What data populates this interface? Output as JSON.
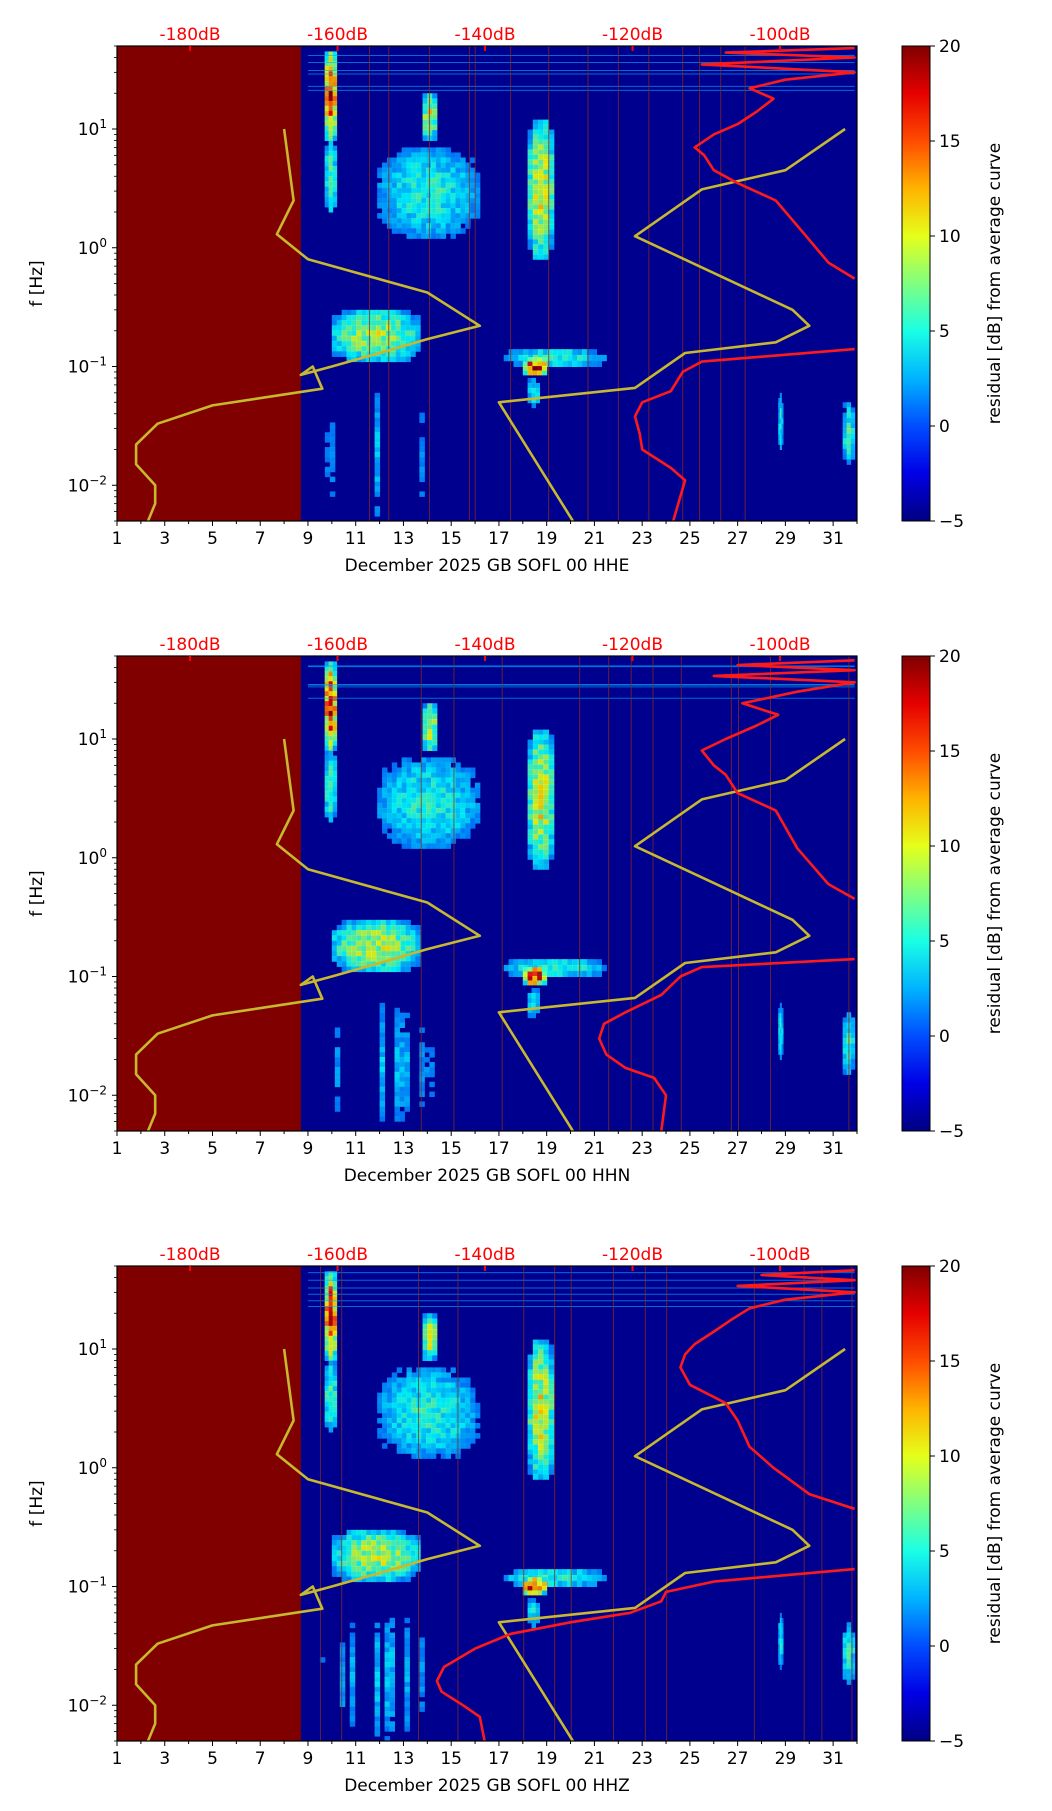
{
  "chart_data": [
    {
      "type": "heatmap",
      "title": "",
      "xlabel": "December 2025 GB SOFL 00 HHE",
      "ylabel": "f [Hz]",
      "x_ticks": [
        "1",
        "3",
        "5",
        "7",
        "9",
        "11",
        "13",
        "15",
        "17",
        "19",
        "21",
        "23",
        "25",
        "27",
        "29",
        "31"
      ],
      "y_ticks": [
        {
          "exp": "1",
          "value": 10
        },
        {
          "exp": "0",
          "value": 1
        },
        {
          "exp": "−1",
          "value": 0.1
        },
        {
          "exp": "−2",
          "value": 0.01
        }
      ],
      "top_ticks": [
        "-180dB",
        "-160dB",
        "-140dB",
        "-120dB",
        "-100dB"
      ],
      "colorbar": {
        "label": "residual [dB] from average curve",
        "min": -5,
        "max": 20,
        "ticks": [
          "20",
          "15",
          "10",
          "5",
          "0",
          "−5"
        ]
      },
      "xlim": [
        1,
        32
      ],
      "ylim": [
        0.005,
        50
      ],
      "missing_data_until_day": 8.7,
      "colors": {
        "missing": "#800000",
        "background": "#00008f",
        "red_line": "#ff1a1a",
        "yellow_line": "#c8b82e",
        "grid_line": "#8b2b1b"
      },
      "series": [
        {
          "color": "yellow",
          "points": [
            [
              8.0,
              10
            ],
            [
              8.4,
              2.5
            ],
            [
              7.7,
              1.3
            ],
            [
              9.0,
              0.8
            ],
            [
              14.0,
              0.42
            ],
            [
              16.2,
              0.22
            ],
            [
              14.0,
              0.17
            ],
            [
              12.0,
              0.13
            ],
            [
              10.0,
              0.1
            ],
            [
              8.7,
              0.085
            ],
            [
              9.2,
              0.1
            ],
            [
              9.6,
              0.065
            ],
            [
              5.0,
              0.047
            ],
            [
              2.7,
              0.033
            ],
            [
              1.8,
              0.022
            ],
            [
              1.8,
              0.015
            ],
            [
              2.6,
              0.01
            ],
            [
              2.6,
              0.007
            ],
            [
              2.3,
              0.005
            ]
          ]
        },
        {
          "color": "yellow",
          "points": [
            [
              20.1,
              0.005
            ],
            [
              17.0,
              0.05
            ],
            [
              22.7,
              0.066
            ],
            [
              24.8,
              0.13
            ],
            [
              28.6,
              0.16
            ],
            [
              30.0,
              0.22
            ],
            [
              29.3,
              0.3
            ],
            [
              22.7,
              1.25
            ],
            [
              25.5,
              3.1
            ],
            [
              29.0,
              4.5
            ],
            [
              31.5,
              10
            ]
          ]
        },
        {
          "color": "red",
          "points": [
            [
              24.3,
              0.005
            ],
            [
              24.8,
              0.011
            ],
            [
              24.2,
              0.014
            ],
            [
              23.0,
              0.02
            ],
            [
              22.9,
              0.027
            ],
            [
              22.7,
              0.038
            ],
            [
              23.0,
              0.05
            ],
            [
              24.2,
              0.062
            ],
            [
              24.7,
              0.09
            ],
            [
              25.5,
              0.11
            ],
            [
              31.9,
              0.14
            ]
          ]
        },
        {
          "color": "red",
          "points": [
            [
              31.9,
              0.55
            ],
            [
              30.8,
              0.75
            ],
            [
              29.8,
              1.3
            ],
            [
              28.6,
              2.5
            ],
            [
              27.0,
              3.5
            ],
            [
              26.0,
              4.5
            ],
            [
              25.6,
              6.0
            ],
            [
              25.2,
              7.0
            ],
            [
              26.0,
              9.0
            ],
            [
              27.0,
              11.0
            ],
            [
              27.8,
              14.0
            ],
            [
              28.5,
              18.0
            ],
            [
              27.5,
              22.0
            ],
            [
              29.0,
              26.0
            ],
            [
              31.9,
              30.0
            ],
            [
              25.5,
              35.0
            ],
            [
              31.9,
              40.0
            ],
            [
              26.5,
              44.0
            ],
            [
              31.9,
              48.0
            ]
          ]
        }
      ]
    },
    {
      "type": "heatmap",
      "title": "",
      "xlabel": "December 2025 GB SOFL 00 HHN",
      "ylabel": "f [Hz]",
      "x_ticks": [
        "1",
        "3",
        "5",
        "7",
        "9",
        "11",
        "13",
        "15",
        "17",
        "19",
        "21",
        "23",
        "25",
        "27",
        "29",
        "31"
      ],
      "y_ticks": [
        {
          "exp": "1",
          "value": 10
        },
        {
          "exp": "0",
          "value": 1
        },
        {
          "exp": "−1",
          "value": 0.1
        },
        {
          "exp": "−2",
          "value": 0.01
        }
      ],
      "top_ticks": [
        "-180dB",
        "-160dB",
        "-140dB",
        "-120dB",
        "-100dB"
      ],
      "colorbar": {
        "label": "residual [dB] from average curve",
        "min": -5,
        "max": 20,
        "ticks": [
          "20",
          "15",
          "10",
          "5",
          "0",
          "−5"
        ]
      },
      "xlim": [
        1,
        32
      ],
      "ylim": [
        0.005,
        50
      ],
      "missing_data_until_day": 8.7,
      "colors": {
        "missing": "#800000",
        "background": "#00008f",
        "red_line": "#ff1a1a",
        "yellow_line": "#c8b82e",
        "grid_line": "#8b2b1b"
      },
      "series": [
        {
          "color": "yellow",
          "points": [
            [
              8.0,
              10
            ],
            [
              8.4,
              2.5
            ],
            [
              7.7,
              1.3
            ],
            [
              9.0,
              0.8
            ],
            [
              14.0,
              0.42
            ],
            [
              16.2,
              0.22
            ],
            [
              14.0,
              0.17
            ],
            [
              12.0,
              0.13
            ],
            [
              10.0,
              0.1
            ],
            [
              8.7,
              0.085
            ],
            [
              9.2,
              0.1
            ],
            [
              9.6,
              0.065
            ],
            [
              5.0,
              0.047
            ],
            [
              2.7,
              0.033
            ],
            [
              1.8,
              0.022
            ],
            [
              1.8,
              0.015
            ],
            [
              2.6,
              0.01
            ],
            [
              2.6,
              0.007
            ],
            [
              2.3,
              0.005
            ]
          ]
        },
        {
          "color": "yellow",
          "points": [
            [
              20.1,
              0.005
            ],
            [
              17.0,
              0.05
            ],
            [
              22.7,
              0.066
            ],
            [
              24.8,
              0.13
            ],
            [
              28.6,
              0.16
            ],
            [
              30.0,
              0.22
            ],
            [
              29.3,
              0.3
            ],
            [
              22.7,
              1.25
            ],
            [
              25.5,
              3.1
            ],
            [
              29.0,
              4.5
            ],
            [
              31.5,
              10
            ]
          ]
        },
        {
          "color": "red",
          "points": [
            [
              23.8,
              0.005
            ],
            [
              24.0,
              0.01
            ],
            [
              23.5,
              0.014
            ],
            [
              22.3,
              0.017
            ],
            [
              21.5,
              0.022
            ],
            [
              21.2,
              0.03
            ],
            [
              21.4,
              0.04
            ],
            [
              22.3,
              0.05
            ],
            [
              23.8,
              0.07
            ],
            [
              24.6,
              0.1
            ],
            [
              25.5,
              0.12
            ],
            [
              31.9,
              0.14
            ]
          ]
        },
        {
          "color": "red",
          "points": [
            [
              31.9,
              0.45
            ],
            [
              30.8,
              0.6
            ],
            [
              29.5,
              1.2
            ],
            [
              28.6,
              2.5
            ],
            [
              27.0,
              3.5
            ],
            [
              26.5,
              5.0
            ],
            [
              26.0,
              6.0
            ],
            [
              25.5,
              8.0
            ],
            [
              26.5,
              10.0
            ],
            [
              27.8,
              13.0
            ],
            [
              28.7,
              16.0
            ],
            [
              27.2,
              20.0
            ],
            [
              29.5,
              25.0
            ],
            [
              31.9,
              30.0
            ],
            [
              26.0,
              34.0
            ],
            [
              31.9,
              38.0
            ],
            [
              27.0,
              42.0
            ],
            [
              31.9,
              46.0
            ]
          ]
        }
      ]
    },
    {
      "type": "heatmap",
      "title": "",
      "xlabel": "December 2025 GB SOFL 00 HHZ",
      "ylabel": "f [Hz]",
      "x_ticks": [
        "1",
        "3",
        "5",
        "7",
        "9",
        "11",
        "13",
        "15",
        "17",
        "19",
        "21",
        "23",
        "25",
        "27",
        "29",
        "31"
      ],
      "y_ticks": [
        {
          "exp": "1",
          "value": 10
        },
        {
          "exp": "0",
          "value": 1
        },
        {
          "exp": "−1",
          "value": 0.1
        },
        {
          "exp": "−2",
          "value": 0.01
        }
      ],
      "top_ticks": [
        "-180dB",
        "-160dB",
        "-140dB",
        "-120dB",
        "-100dB"
      ],
      "colorbar": {
        "label": "residual [dB] from average curve",
        "min": -5,
        "max": 20,
        "ticks": [
          "20",
          "15",
          "10",
          "5",
          "0",
          "−5"
        ]
      },
      "xlim": [
        1,
        32
      ],
      "ylim": [
        0.005,
        50
      ],
      "missing_data_until_day": 8.7,
      "colors": {
        "missing": "#800000",
        "background": "#00008f",
        "red_line": "#ff1a1a",
        "yellow_line": "#c8b82e",
        "grid_line": "#8b2b1b"
      },
      "series": [
        {
          "color": "yellow",
          "points": [
            [
              8.0,
              10
            ],
            [
              8.4,
              2.5
            ],
            [
              7.7,
              1.3
            ],
            [
              9.0,
              0.8
            ],
            [
              14.0,
              0.42
            ],
            [
              16.2,
              0.22
            ],
            [
              14.0,
              0.17
            ],
            [
              12.0,
              0.13
            ],
            [
              10.0,
              0.1
            ],
            [
              8.7,
              0.085
            ],
            [
              9.2,
              0.1
            ],
            [
              9.6,
              0.065
            ],
            [
              5.0,
              0.047
            ],
            [
              2.7,
              0.033
            ],
            [
              1.8,
              0.022
            ],
            [
              1.8,
              0.015
            ],
            [
              2.6,
              0.01
            ],
            [
              2.6,
              0.007
            ],
            [
              2.3,
              0.005
            ]
          ]
        },
        {
          "color": "yellow",
          "points": [
            [
              20.1,
              0.005
            ],
            [
              17.0,
              0.05
            ],
            [
              22.7,
              0.066
            ],
            [
              24.8,
              0.13
            ],
            [
              28.6,
              0.16
            ],
            [
              30.0,
              0.22
            ],
            [
              29.3,
              0.3
            ],
            [
              22.7,
              1.25
            ],
            [
              25.5,
              3.1
            ],
            [
              29.0,
              4.5
            ],
            [
              31.5,
              10
            ]
          ]
        },
        {
          "color": "red",
          "points": [
            [
              16.4,
              0.005
            ],
            [
              16.2,
              0.008
            ],
            [
              15.5,
              0.01
            ],
            [
              14.6,
              0.013
            ],
            [
              14.4,
              0.016
            ],
            [
              14.7,
              0.021
            ],
            [
              16.0,
              0.03
            ],
            [
              17.5,
              0.04
            ],
            [
              20.0,
              0.05
            ],
            [
              22.5,
              0.06
            ],
            [
              23.8,
              0.075
            ],
            [
              24.0,
              0.09
            ],
            [
              26.0,
              0.11
            ],
            [
              31.9,
              0.14
            ]
          ]
        },
        {
          "color": "red",
          "points": [
            [
              31.9,
              0.45
            ],
            [
              30.0,
              0.6
            ],
            [
              28.5,
              1.0
            ],
            [
              27.5,
              1.5
            ],
            [
              27.0,
              2.5
            ],
            [
              26.5,
              3.5
            ],
            [
              25.0,
              5.0
            ],
            [
              24.6,
              7.0
            ],
            [
              24.8,
              9.0
            ],
            [
              25.2,
              11.0
            ],
            [
              26.0,
              14.0
            ],
            [
              26.8,
              18.0
            ],
            [
              27.5,
              22.0
            ],
            [
              29.0,
              26.0
            ],
            [
              31.9,
              30.0
            ],
            [
              27.0,
              34.0
            ],
            [
              31.9,
              38.0
            ],
            [
              28.0,
              42.0
            ],
            [
              31.9,
              46.0
            ]
          ]
        }
      ]
    }
  ]
}
